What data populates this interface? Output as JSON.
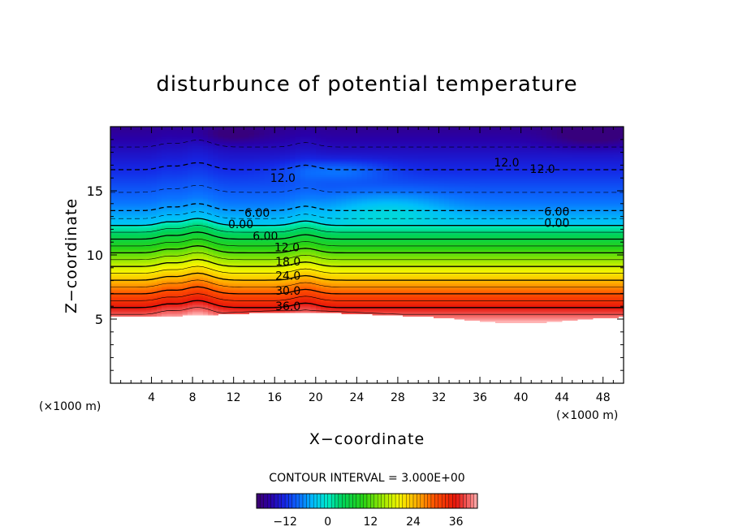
{
  "chart_data": {
    "type": "heatmap",
    "title": "disturbunce of potential temperature",
    "xlabel": "X−coordinate",
    "ylabel": "Z−coordinate",
    "x_unit_label": "(×1000 m)",
    "z_unit_label": "(×1000 m)",
    "xlim": [
      0,
      50
    ],
    "ylim": [
      0,
      20
    ],
    "x_ticks": [
      {
        "value": 4,
        "label": "4"
      },
      {
        "value": 8,
        "label": "8"
      },
      {
        "value": 12,
        "label": "12"
      },
      {
        "value": 16,
        "label": "16"
      },
      {
        "value": 20,
        "label": "20"
      },
      {
        "value": 24,
        "label": "24"
      },
      {
        "value": 28,
        "label": "28"
      },
      {
        "value": 32,
        "label": "32"
      },
      {
        "value": 36,
        "label": "36"
      },
      {
        "value": 40,
        "label": "40"
      },
      {
        "value": 44,
        "label": "44"
      },
      {
        "value": 48,
        "label": "48"
      }
    ],
    "y_ticks": [
      {
        "value": 5,
        "label": "5"
      },
      {
        "value": 10,
        "label": "10"
      },
      {
        "value": 15,
        "label": "15"
      }
    ],
    "contour_interval_text": "CONTOUR INTERVAL = 3.000E+00",
    "colorbar": {
      "min": -20,
      "max": 42,
      "ticks": [
        {
          "value": -12,
          "label": "−12"
        },
        {
          "value": 0,
          "label": "0"
        },
        {
          "value": 12,
          "label": "12"
        },
        {
          "value": 24,
          "label": "24"
        },
        {
          "value": 36,
          "label": "36"
        }
      ]
    },
    "contour_labels": [
      {
        "text": "12.0",
        "x": 16.8,
        "z": 16.0
      },
      {
        "text": "6.00",
        "x": 14.3,
        "z": 13.3
      },
      {
        "text": "0.00",
        "x": 12.7,
        "z": 12.4
      },
      {
        "text": "6.00",
        "x": 15.1,
        "z": 11.5
      },
      {
        "text": "12.0",
        "x": 17.2,
        "z": 10.6
      },
      {
        "text": "18.0",
        "x": 17.3,
        "z": 9.5
      },
      {
        "text": "24.0",
        "x": 17.3,
        "z": 8.4
      },
      {
        "text": "30.0",
        "x": 17.3,
        "z": 7.2
      },
      {
        "text": "36.0",
        "x": 17.3,
        "z": 6.0
      },
      {
        "text": "12.0",
        "x": 38.6,
        "z": 17.2
      },
      {
        "text": "12.0",
        "x": 42.1,
        "z": 16.7
      },
      {
        "text": "6.00",
        "x": 43.5,
        "z": 13.4
      },
      {
        "text": "0.00",
        "x": 43.5,
        "z": 12.5
      }
    ]
  }
}
